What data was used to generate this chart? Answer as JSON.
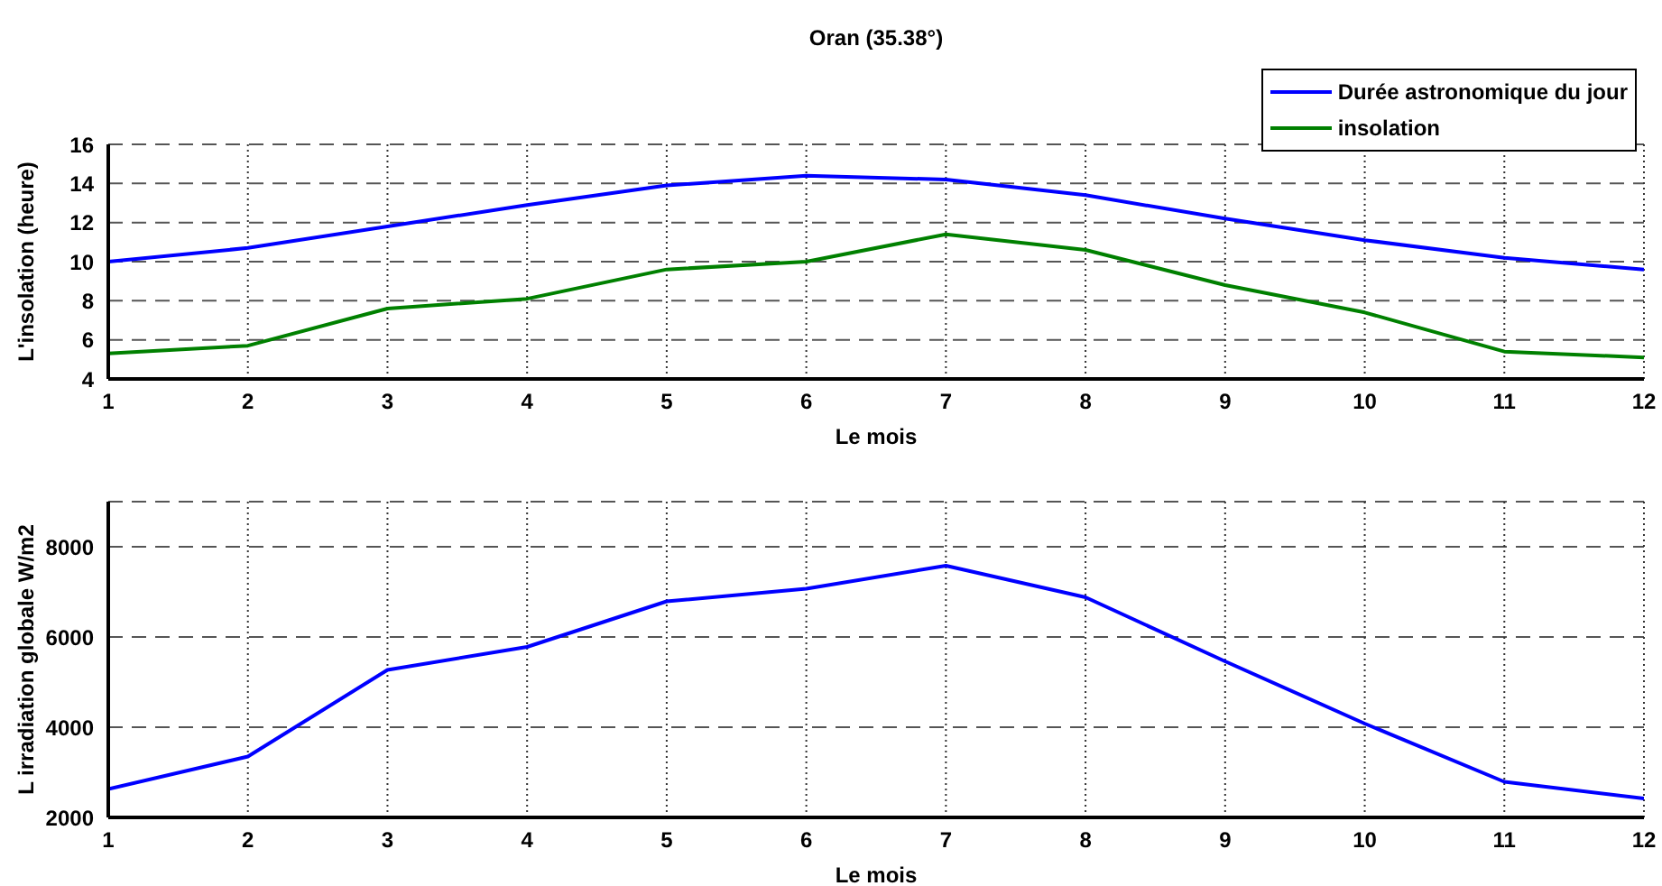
{
  "chart_data": [
    {
      "type": "line",
      "title": "Oran (35.38°)",
      "xlabel": "Le mois",
      "ylabel": "L'insolation (heure)",
      "x": [
        1,
        2,
        3,
        4,
        5,
        6,
        7,
        8,
        9,
        10,
        11,
        12
      ],
      "xlim": [
        1,
        12
      ],
      "xticks": [
        1,
        2,
        3,
        4,
        5,
        6,
        7,
        8,
        9,
        10,
        11,
        12
      ],
      "ylim": [
        4,
        16
      ],
      "yticks": [
        4,
        6,
        8,
        10,
        12,
        14,
        16
      ],
      "grid": true,
      "legend": "top right",
      "series": [
        {
          "name": "Durée astronomique du jour",
          "color": "#0000ff",
          "values": [
            10.0,
            10.7,
            11.8,
            12.9,
            13.9,
            14.4,
            14.2,
            13.4,
            12.2,
            11.1,
            10.2,
            9.6
          ]
        },
        {
          "name": "insolation",
          "color": "#008000",
          "values": [
            5.3,
            5.7,
            7.6,
            8.1,
            9.6,
            10.0,
            11.4,
            10.6,
            8.8,
            7.4,
            5.4,
            5.1
          ]
        }
      ]
    },
    {
      "type": "line",
      "xlabel": "Le mois",
      "ylabel": "L irradiation globale W/m2",
      "x": [
        1,
        2,
        3,
        4,
        5,
        6,
        7,
        8,
        9,
        10,
        11,
        12
      ],
      "xlim": [
        1,
        12
      ],
      "xticks": [
        1,
        2,
        3,
        4,
        5,
        6,
        7,
        8,
        9,
        10,
        11,
        12
      ],
      "ylim": [
        2000,
        9000
      ],
      "yticks": [
        2000,
        4000,
        6000,
        8000
      ],
      "grid": true,
      "series": [
        {
          "color": "#0000ff",
          "values": [
            2630,
            3350,
            5270,
            5780,
            6790,
            7070,
            7580,
            6880,
            5460,
            4080,
            2790,
            2420
          ]
        }
      ]
    }
  ]
}
